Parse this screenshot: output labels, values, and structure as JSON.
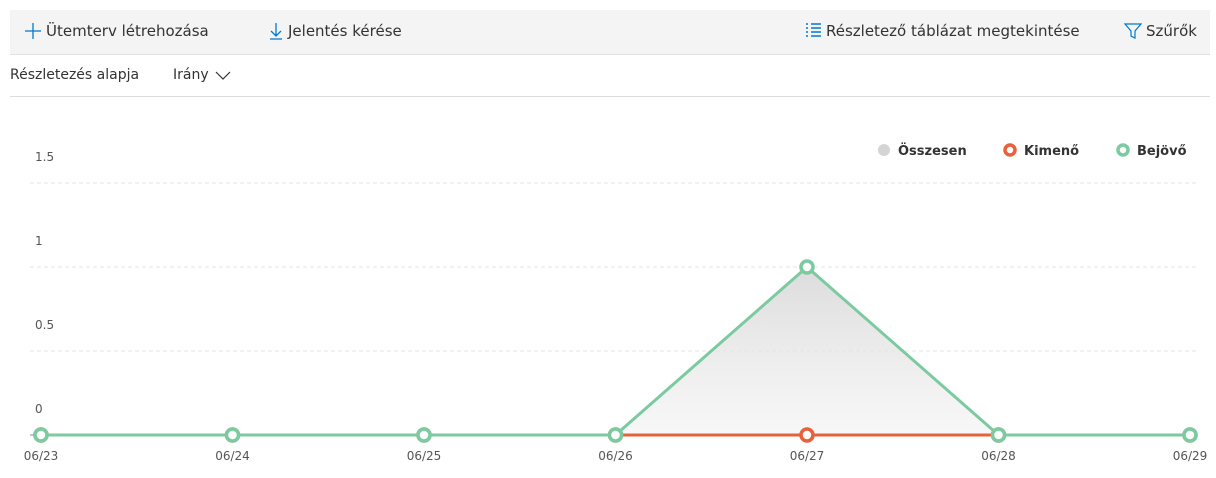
{
  "toolbar": {
    "create_schedule": "Ütemterv létrehozása",
    "request_report": "Jelentés kérése",
    "view_details_table": "Részletező táblázat megtekintése",
    "filters": "Szűrők"
  },
  "breakdown": {
    "label": "Részletezés alapja",
    "value": "Irány"
  },
  "chart_data": {
    "type": "line",
    "categories": [
      "06/23",
      "06/24",
      "06/25",
      "06/26",
      "06/27",
      "06/28",
      "06/29"
    ],
    "series": [
      {
        "name": "Összesen",
        "color": "#d4d4d4",
        "values": [
          0,
          0,
          0,
          0,
          1,
          0,
          0
        ],
        "fill": "area"
      },
      {
        "name": "Kimenő",
        "color": "#e8603c",
        "values": [
          0,
          0,
          0,
          0,
          0,
          0,
          0
        ]
      },
      {
        "name": "Bejövő",
        "color": "#7ccaa0",
        "values": [
          0,
          0,
          0,
          0,
          1,
          0,
          0
        ]
      }
    ],
    "ylim": [
      0,
      1.5
    ],
    "yticks": [
      0,
      0.5,
      1,
      1.5
    ],
    "grid": true,
    "legend": "top-right"
  }
}
